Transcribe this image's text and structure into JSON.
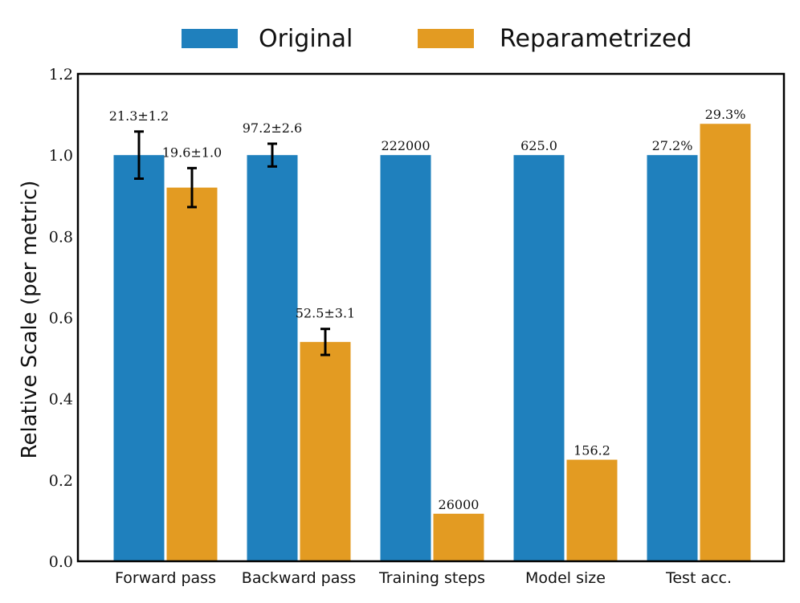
{
  "chart_data": {
    "type": "bar",
    "title": "",
    "xlabel": "",
    "ylabel": "Relative Scale (per metric)",
    "ylim": [
      0,
      1.2
    ],
    "yticks": [
      "0.0",
      "0.2",
      "0.4",
      "0.6",
      "0.8",
      "1.0",
      "1.2"
    ],
    "categories": [
      "Forward pass",
      "Backward pass",
      "Training steps",
      "Model size",
      "Test acc."
    ],
    "legend_position": "top-center",
    "grid": false,
    "series": [
      {
        "name": "Original",
        "color": "#1f80bd",
        "values": [
          1.0,
          1.0,
          1.0,
          1.0,
          1.0
        ],
        "errors": [
          0.058,
          0.028,
          null,
          null,
          null
        ],
        "labels": [
          "21.3±1.2",
          "97.2±2.6",
          "222000",
          "625.0",
          "27.2%"
        ]
      },
      {
        "name": "Reparametrized",
        "color": "#e39b22",
        "values": [
          0.92,
          0.54,
          0.117,
          0.25,
          1.077
        ],
        "errors": [
          0.048,
          0.032,
          null,
          null,
          null
        ],
        "labels": [
          "19.6±1.0",
          "52.5±3.1",
          "26000",
          "156.2",
          "29.3%"
        ]
      }
    ]
  }
}
